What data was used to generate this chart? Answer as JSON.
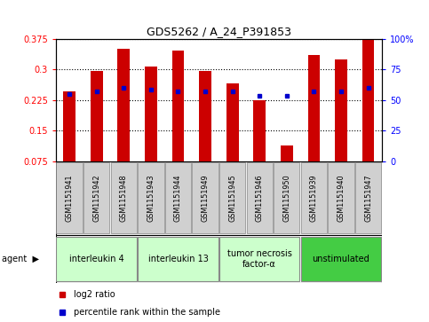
{
  "title": "GDS5262 / A_24_P391853",
  "samples": [
    "GSM1151941",
    "GSM1151942",
    "GSM1151948",
    "GSM1151943",
    "GSM1151944",
    "GSM1151949",
    "GSM1151945",
    "GSM1151946",
    "GSM1151950",
    "GSM1151939",
    "GSM1151940",
    "GSM1151947"
  ],
  "log2_ratio": [
    0.245,
    0.296,
    0.35,
    0.307,
    0.345,
    0.296,
    0.265,
    0.225,
    0.113,
    0.335,
    0.325,
    0.375
  ],
  "percentile": [
    55,
    57,
    60,
    58,
    57,
    57,
    57,
    53,
    53,
    57,
    57,
    60
  ],
  "agents": [
    {
      "label": "interleukin 4",
      "start": 0,
      "end": 3,
      "color": "#ccffcc"
    },
    {
      "label": "interleukin 13",
      "start": 3,
      "end": 6,
      "color": "#ccffcc"
    },
    {
      "label": "tumor necrosis\nfactor-α",
      "start": 6,
      "end": 9,
      "color": "#ccffcc"
    },
    {
      "label": "unstimulated",
      "start": 9,
      "end": 12,
      "color": "#44cc44"
    }
  ],
  "bar_color": "#cc0000",
  "dot_color": "#0000cc",
  "ylim_left": [
    0.075,
    0.375
  ],
  "yticks_left": [
    0.075,
    0.15,
    0.225,
    0.3,
    0.375
  ],
  "ytick_labels_left": [
    "0.075",
    "0.15",
    "0.225",
    "0.3",
    "0.375"
  ],
  "ylim_right": [
    0,
    100
  ],
  "yticks_right": [
    0,
    25,
    50,
    75,
    100
  ],
  "ytick_labels_right": [
    "0",
    "25",
    "50",
    "75",
    "100%"
  ],
  "bg_color": "#ffffff",
  "plot_bg": "#ffffff",
  "bar_width": 0.45,
  "legend_items": [
    {
      "label": "log2 ratio",
      "color": "#cc0000"
    },
    {
      "label": "percentile rank within the sample",
      "color": "#0000cc"
    }
  ],
  "sample_box_color": "#d0d0d0",
  "sample_box_edge": "#888888",
  "figure_width": 4.83,
  "figure_height": 3.63
}
